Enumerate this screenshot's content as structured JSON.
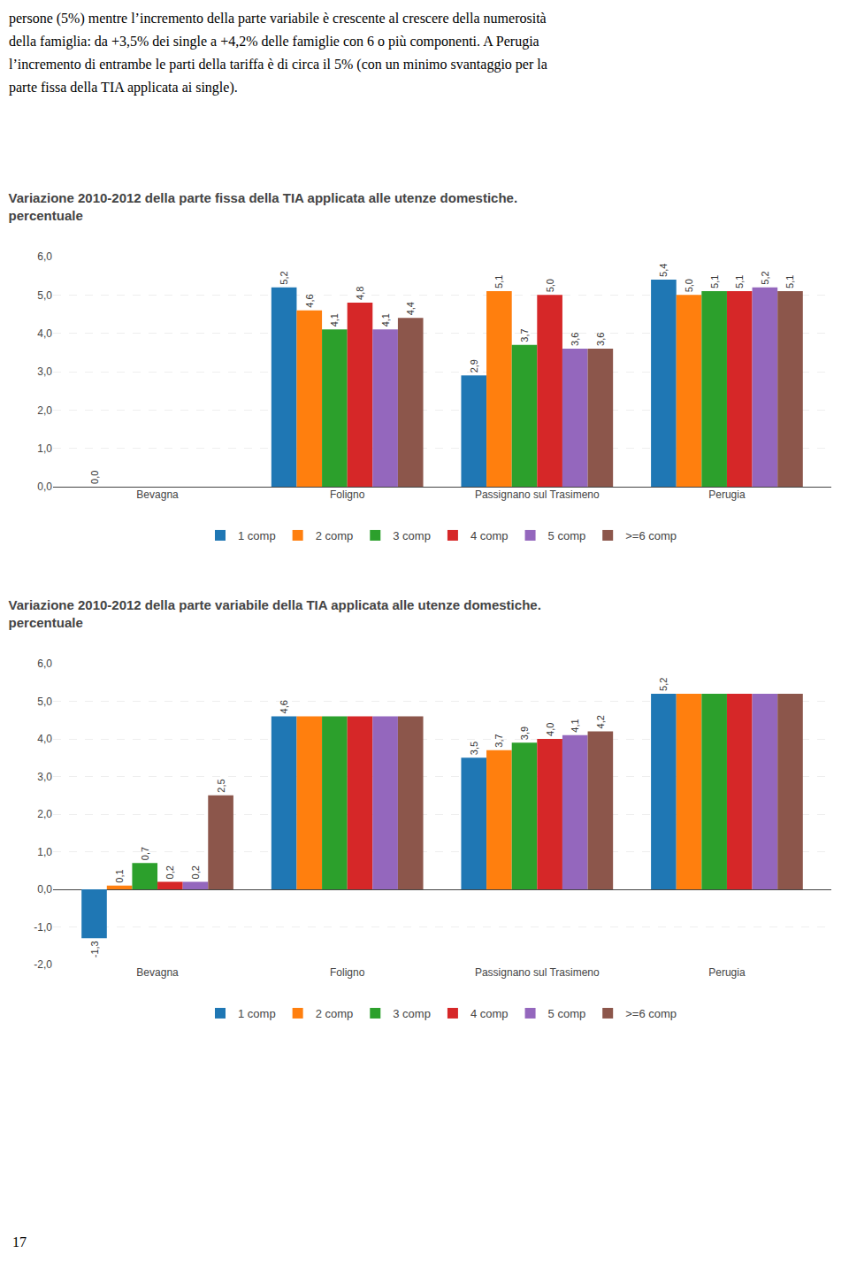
{
  "text": [
    "persone (5%) mentre l’incremento della parte variabile è crescente al crescere della numerosità",
    "della famiglia: da +3,5% dei single a +4,2% delle famiglie con 6 o più componenti. A Perugia",
    "l’incremento di entrambe le parti della tariffa è di circa il 5% (con un minimo svantaggio per la",
    "parte fissa della TIA applicata ai single)."
  ],
  "page_number": "17",
  "chart_data": [
    {
      "type": "bar",
      "title": "Variazione 2010-2012 della parte fissa della TIA applicata alle utenze domestiche.\npercentuale",
      "categories": [
        "Bevagna",
        "Foligno",
        "Passignano sul Trasimeno",
        "Perugia"
      ],
      "series": [
        {
          "name": "1 comp",
          "values": [
            0.0,
            5.2,
            2.9,
            5.4
          ],
          "value_labels": [
            "0,0",
            "5,2",
            "2,9",
            "5,4"
          ]
        },
        {
          "name": "2 comp",
          "values": [
            0.0,
            4.6,
            5.1,
            5.0
          ],
          "value_labels": [
            null,
            "4,6",
            "5,1",
            "5,0"
          ]
        },
        {
          "name": "3 comp",
          "values": [
            0.0,
            4.1,
            3.7,
            5.1
          ],
          "value_labels": [
            null,
            "4,1",
            "3,7",
            "5,1"
          ]
        },
        {
          "name": "4 comp",
          "values": [
            0.0,
            4.8,
            5.0,
            5.1
          ],
          "value_labels": [
            null,
            "4,8",
            "5,0",
            "5,1"
          ]
        },
        {
          "name": "5 comp",
          "values": [
            0.0,
            4.1,
            3.6,
            5.2
          ],
          "value_labels": [
            null,
            "4,1",
            "3,6",
            "5,2"
          ]
        },
        {
          "name": ">=6 comp",
          "values": [
            0.0,
            4.4,
            3.6,
            5.1
          ],
          "value_labels": [
            null,
            "4,4",
            "3,6",
            "5,1"
          ]
        }
      ],
      "ylim": [
        0.0,
        6.0
      ],
      "yticks": [
        {
          "value": 0.0,
          "label": "0,0"
        },
        {
          "value": 1.0,
          "label": "1,0"
        },
        {
          "value": 2.0,
          "label": "2,0"
        },
        {
          "value": 3.0,
          "label": "3,0"
        },
        {
          "value": 4.0,
          "label": "4,0"
        },
        {
          "value": 5.0,
          "label": "5,0"
        },
        {
          "value": 6.0,
          "label": "6,0"
        }
      ],
      "grid": true,
      "legend": "bottom",
      "data_labels": true
    },
    {
      "type": "bar",
      "title": "Variazione 2010-2012 della parte variabile della TIA applicata alle utenze domestiche.\npercentuale",
      "categories": [
        "Bevagna",
        "Foligno",
        "Passignano sul Trasimeno",
        "Perugia"
      ],
      "series": [
        {
          "name": "1 comp",
          "values": [
            -1.3,
            4.6,
            3.5,
            5.2
          ],
          "value_labels": [
            "-1,3",
            "4,6",
            "3,5",
            "5,2"
          ]
        },
        {
          "name": "2 comp",
          "values": [
            0.1,
            4.6,
            3.7,
            5.2
          ],
          "value_labels": [
            "0,1",
            null,
            "3,7",
            null
          ]
        },
        {
          "name": "3 comp",
          "values": [
            0.7,
            4.6,
            3.9,
            5.2
          ],
          "value_labels": [
            "0,7",
            null,
            "3,9",
            null
          ]
        },
        {
          "name": "4 comp",
          "values": [
            0.2,
            4.6,
            4.0,
            5.2
          ],
          "value_labels": [
            "0,2",
            null,
            "4,0",
            null
          ]
        },
        {
          "name": "5 comp",
          "values": [
            0.2,
            4.6,
            4.1,
            5.2
          ],
          "value_labels": [
            "0,2",
            null,
            "4,1",
            null
          ]
        },
        {
          "name": ">=6 comp",
          "values": [
            2.5,
            4.6,
            4.2,
            5.2
          ],
          "value_labels": [
            "2,5",
            null,
            "4,2",
            null
          ]
        }
      ],
      "ylim": [
        -2.0,
        6.0
      ],
      "yticks": [
        {
          "value": -2.0,
          "label": "-2,0"
        },
        {
          "value": -1.0,
          "label": "-1,0"
        },
        {
          "value": 0.0,
          "label": "0,0"
        },
        {
          "value": 1.0,
          "label": "1,0"
        },
        {
          "value": 2.0,
          "label": "2,0"
        },
        {
          "value": 3.0,
          "label": "3,0"
        },
        {
          "value": 4.0,
          "label": "4,0"
        },
        {
          "value": 5.0,
          "label": "5,0"
        },
        {
          "value": 6.0,
          "label": "6,0"
        }
      ],
      "grid": true,
      "legend": "bottom",
      "data_labels": true
    }
  ]
}
